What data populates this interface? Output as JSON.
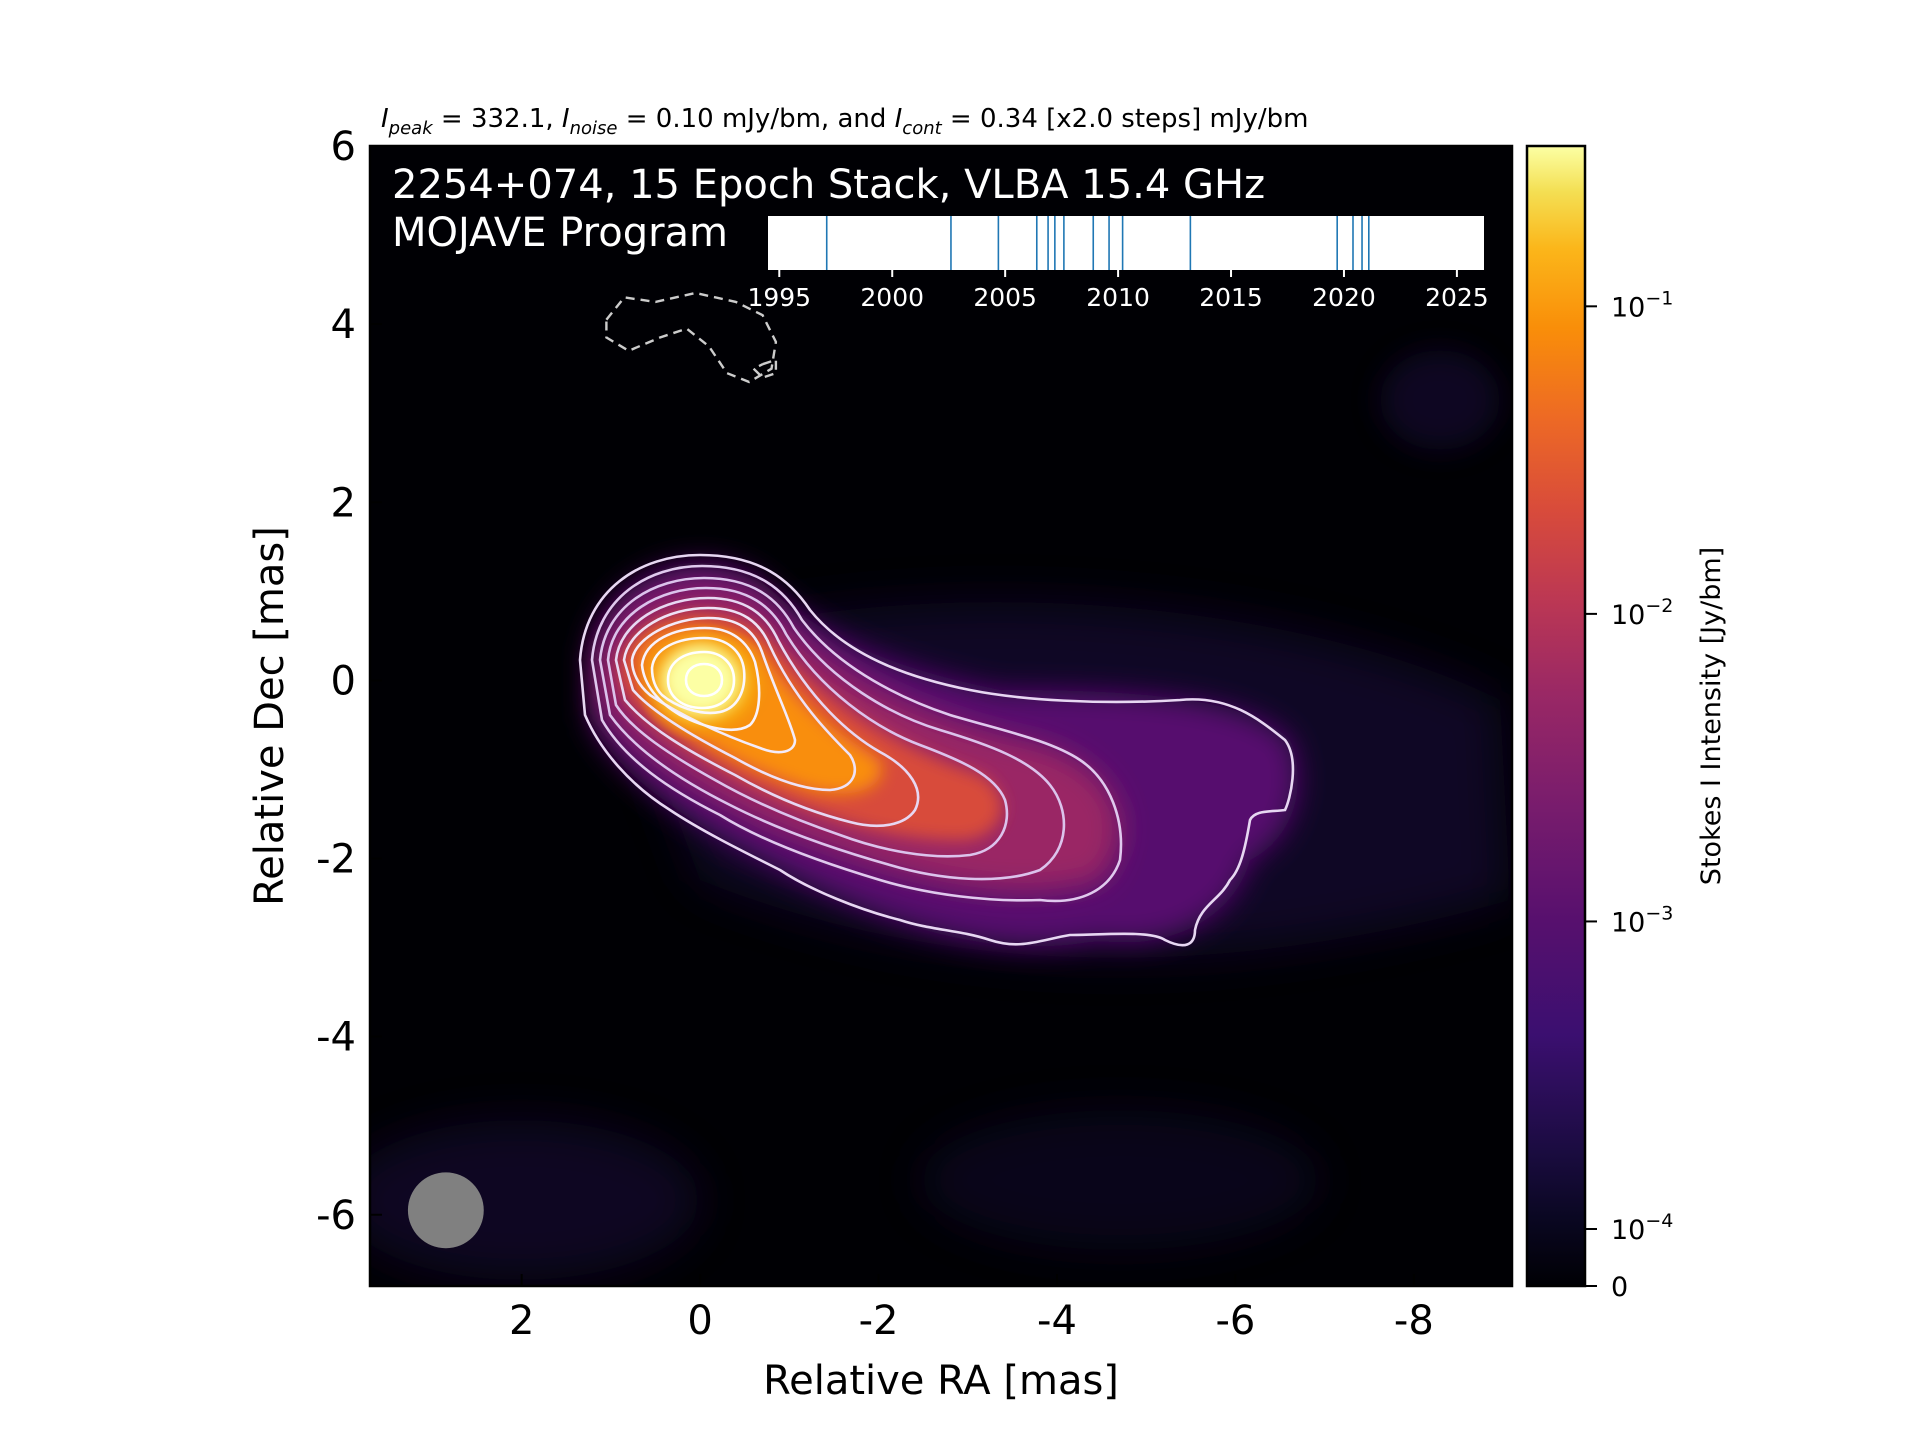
{
  "header": {
    "stats_line_parts": {
      "ipeak_sub": "peak",
      "ipeak_value": " = 332.1, ",
      "inoise_sub": "noise",
      "inoise_value": " = 0.10 mJy/bm, and ",
      "icont_sub": "cont",
      "icont_value": " = 0.34 [x2.0 steps] mJy/bm"
    }
  },
  "overlay": {
    "line1": "2254+074, 15 Epoch Stack, VLBA 15.4 GHz",
    "line2": "MOJAVE Program"
  },
  "chart_data": {
    "type": "heatmap",
    "title": "2254+074, 15 Epoch Stack, VLBA 15.4 GHz",
    "subtitle": "MOJAVE Program",
    "xlabel": "Relative RA [mas]",
    "ylabel": "Relative Dec [mas]",
    "xlim": [
      3.7,
      -9.1
    ],
    "ylim": [
      -6.8,
      6.0
    ],
    "xticks": [
      2,
      0,
      -2,
      -4,
      -6,
      -8
    ],
    "yticks": [
      6,
      4,
      2,
      0,
      -2,
      -4,
      -6
    ],
    "colormap": "inferno",
    "background_color": "#000004",
    "colorbar": {
      "label": "Stokes I Intensity [Jy/bm]",
      "scale": "symlog",
      "ticks": [
        {
          "label": "0",
          "value": 0
        },
        {
          "label": "10",
          "exp": "−4",
          "value": 0.0001
        },
        {
          "label": "10",
          "exp": "−3",
          "value": 0.001
        },
        {
          "label": "10",
          "exp": "−2",
          "value": 0.01
        },
        {
          "label": "10",
          "exp": "−1",
          "value": 0.1
        }
      ],
      "vmax": 0.3321
    },
    "peak_intensity_mJy": 332.1,
    "noise_mJy": 0.1,
    "lowest_contour_mJy": 0.34,
    "contour_step_factor": 2.0,
    "core_position_mas": [
      0,
      0
    ],
    "beam": {
      "major_mas": 0.85,
      "minor_mas": 0.85,
      "color": "#808080",
      "center_mas": [
        2.85,
        -5.95
      ]
    },
    "epoch_timeline": {
      "xlim": [
        1994.5,
        2026.2
      ],
      "ticks": [
        1995,
        2000,
        2005,
        2010,
        2015,
        2020,
        2025
      ],
      "epochs": [
        1997.1,
        2002.6,
        2004.7,
        2006.4,
        2006.9,
        2007.2,
        2007.6,
        2008.9,
        2009.6,
        2010.2,
        2013.2,
        2019.7,
        2020.4,
        2020.8,
        2021.1
      ],
      "line_color": "#1f77b4"
    },
    "negative_contours_mas": [
      [
        [
          1.05,
          4.05
        ],
        [
          0.85,
          4.3
        ],
        [
          0.5,
          4.25
        ],
        [
          0.05,
          4.35
        ],
        [
          -0.4,
          4.25
        ],
        [
          -0.7,
          4.1
        ],
        [
          -0.85,
          3.8
        ],
        [
          -0.8,
          3.5
        ],
        [
          -0.55,
          3.35
        ],
        [
          -0.3,
          3.45
        ],
        [
          -0.1,
          3.75
        ],
        [
          0.15,
          3.95
        ],
        [
          0.45,
          3.85
        ],
        [
          0.8,
          3.7
        ],
        [
          1.05,
          3.85
        ],
        [
          1.05,
          4.05
        ]
      ],
      [
        [
          -0.7,
          3.55
        ],
        [
          -0.85,
          3.6
        ],
        [
          -0.85,
          3.45
        ],
        [
          -0.7,
          3.4
        ],
        [
          -0.6,
          3.5
        ],
        [
          -0.7,
          3.55
        ]
      ]
    ]
  }
}
